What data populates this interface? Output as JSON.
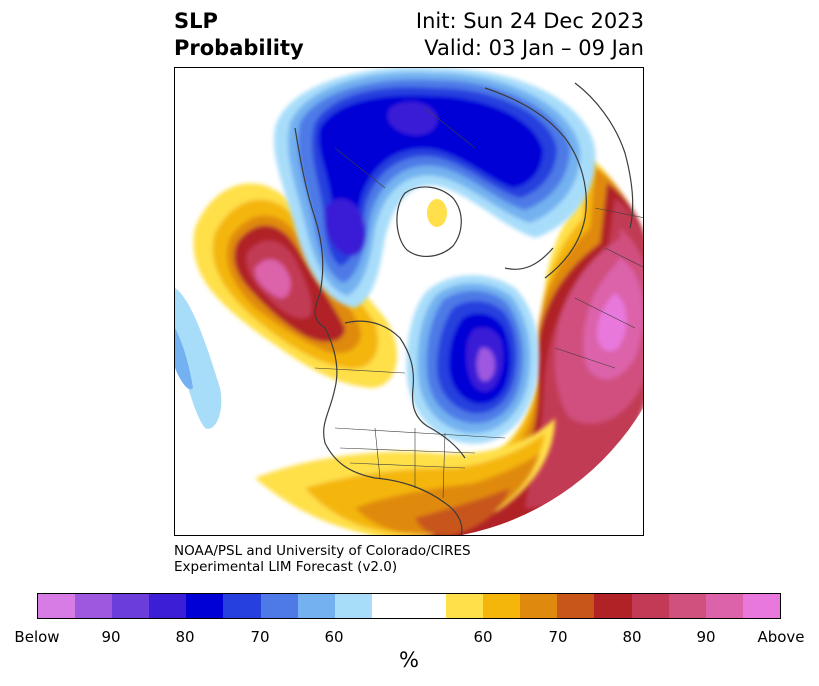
{
  "title": {
    "left_line1": "SLP",
    "left_line2": "Probability",
    "right_line1": "Init: Sun 24 Dec 2023",
    "right_line2": "Valid: 03 Jan – 09 Jan"
  },
  "credit": {
    "line1": "NOAA/PSL and University of Colorado/CIRES",
    "line2": "Experimental LIM Forecast (v2.0)"
  },
  "colorbar": {
    "colors": [
      "#d77be5",
      "#9e58e0",
      "#6b3ddb",
      "#3b1ed6",
      "#0000d6",
      "#2540de",
      "#4d7ae6",
      "#73b1f0",
      "#a8ddfa",
      "#ffffff",
      "#ffffff",
      "#ffe04a",
      "#f4b60a",
      "#e08a0d",
      "#c8561a",
      "#b02226",
      "#c23a55",
      "#d0507e",
      "#dc62aa",
      "#e878dc"
    ],
    "tick_labels": [
      "Below",
      "90",
      "80",
      "70",
      "60",
      "60",
      "70",
      "80",
      "90",
      "Above"
    ],
    "unit": "%"
  },
  "map": {
    "projection": "north polar stereographic",
    "region": "Northern Hemisphere",
    "field": "Sea level pressure probability"
  }
}
